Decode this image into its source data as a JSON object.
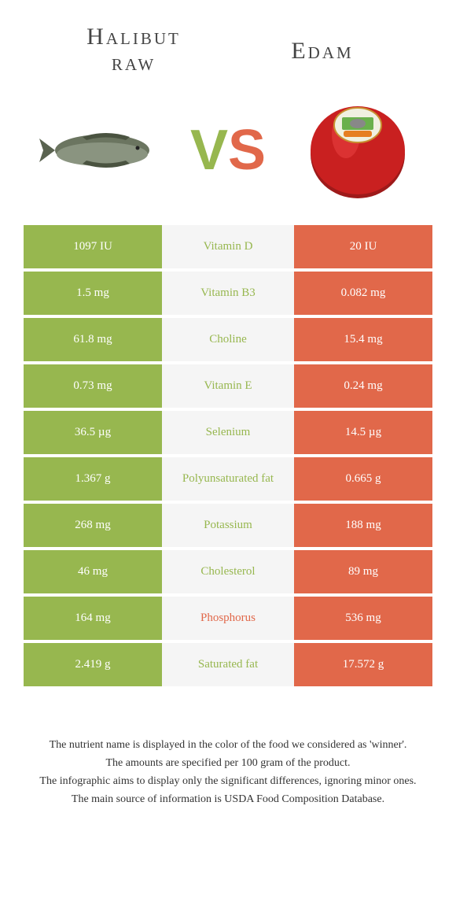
{
  "colors": {
    "green": "#97b74f",
    "orange": "#e1684a",
    "mid_bg": "#f5f5f5",
    "text": "#333333"
  },
  "header": {
    "left_title_line1": "Halibut",
    "left_title_line2": "raw",
    "right_title": "Edam",
    "vs_v": "V",
    "vs_s": "S"
  },
  "rows": [
    {
      "nutrient": "Vitamin D",
      "left": "1097 IU",
      "right": "20 IU",
      "winner": "left"
    },
    {
      "nutrient": "Vitamin B3",
      "left": "1.5 mg",
      "right": "0.082 mg",
      "winner": "left"
    },
    {
      "nutrient": "Choline",
      "left": "61.8 mg",
      "right": "15.4 mg",
      "winner": "left"
    },
    {
      "nutrient": "Vitamin E",
      "left": "0.73 mg",
      "right": "0.24 mg",
      "winner": "left"
    },
    {
      "nutrient": "Selenium",
      "left": "36.5 µg",
      "right": "14.5 µg",
      "winner": "left"
    },
    {
      "nutrient": "Polyunsaturated fat",
      "left": "1.367 g",
      "right": "0.665 g",
      "winner": "left"
    },
    {
      "nutrient": "Potassium",
      "left": "268 mg",
      "right": "188 mg",
      "winner": "left"
    },
    {
      "nutrient": "Cholesterol",
      "left": "46 mg",
      "right": "89 mg",
      "winner": "left"
    },
    {
      "nutrient": "Phosphorus",
      "left": "164 mg",
      "right": "536 mg",
      "winner": "right"
    },
    {
      "nutrient": "Saturated fat",
      "left": "2.419 g",
      "right": "17.572 g",
      "winner": "left"
    }
  ],
  "footnotes": [
    "The nutrient name is displayed in the color of the food we considered as 'winner'.",
    "The amounts are specified per 100 gram of the product.",
    "The infographic aims to display only the significant differences, ignoring minor ones.",
    "The main source of information is USDA Food Composition Database."
  ]
}
